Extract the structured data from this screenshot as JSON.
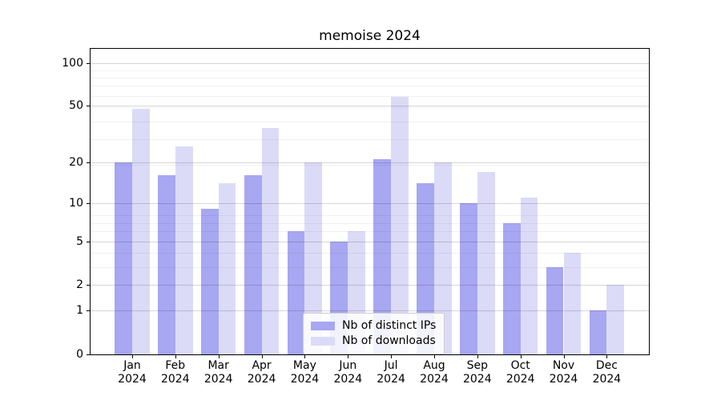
{
  "chart_data": {
    "type": "bar",
    "title": "memoise 2024",
    "categories": [
      "Jan",
      "Feb",
      "Mar",
      "Apr",
      "May",
      "Jun",
      "Jul",
      "Aug",
      "Sep",
      "Oct",
      "Nov",
      "Dec"
    ],
    "x_year_label": "2024",
    "series": [
      {
        "name": "Nb of distinct IPs",
        "color": "#a7a7f2",
        "values": [
          20,
          16,
          9,
          16,
          6,
          5,
          21,
          14,
          10,
          7,
          3,
          1
        ]
      },
      {
        "name": "Nb of downloads",
        "color": "#dbdbf8",
        "values": [
          48,
          26,
          14,
          35,
          20,
          6,
          58,
          20,
          17,
          11,
          4,
          2
        ]
      }
    ],
    "yscale": "log1p",
    "yticks": [
      0,
      1,
      2,
      5,
      10,
      20,
      50,
      100
    ],
    "ylim": [
      0,
      125
    ],
    "grid": true,
    "legend_position": "lower center"
  }
}
